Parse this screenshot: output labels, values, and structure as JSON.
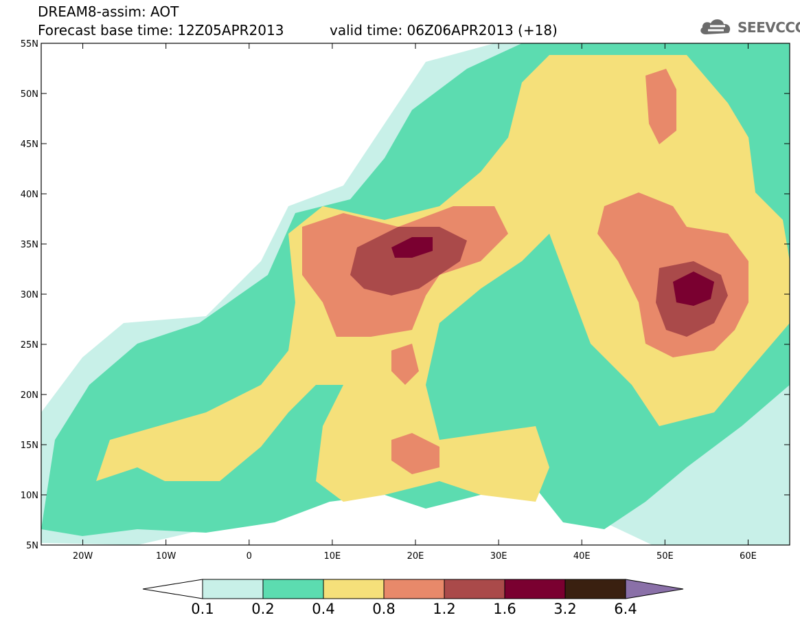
{
  "header": {
    "title_line1": "DREAM8-assim: AOT",
    "title_line2": "Forecast base time: 12Z05APR2013",
    "valid_time": "valid time: 06Z06APR2013 (+18)",
    "logo_text": "SEEVCCC"
  },
  "map": {
    "projection": "lat-lon",
    "lon_range": [
      -25,
      65
    ],
    "lat_range": [
      5,
      55
    ],
    "lon_ticks": [
      "20W",
      "10W",
      "0",
      "10E",
      "20E",
      "30E",
      "40E",
      "50E",
      "60E"
    ],
    "lat_ticks": [
      "55N",
      "50N",
      "45N",
      "40N",
      "35N",
      "30N",
      "25N",
      "20N",
      "15N",
      "10N",
      "5N"
    ],
    "field": "aerosol optical thickness"
  },
  "colorbar": {
    "labels": [
      "0.1",
      "0.2",
      "0.4",
      "0.8",
      "1.2",
      "1.6",
      "3.2",
      "6.4"
    ],
    "colors": [
      "#ffffff",
      "#c8f0e8",
      "#5cdcb0",
      "#f5e07a",
      "#e8896a",
      "#aa4a4a",
      "#7a0030",
      "#3a2010",
      "#8a70a8"
    ]
  }
}
